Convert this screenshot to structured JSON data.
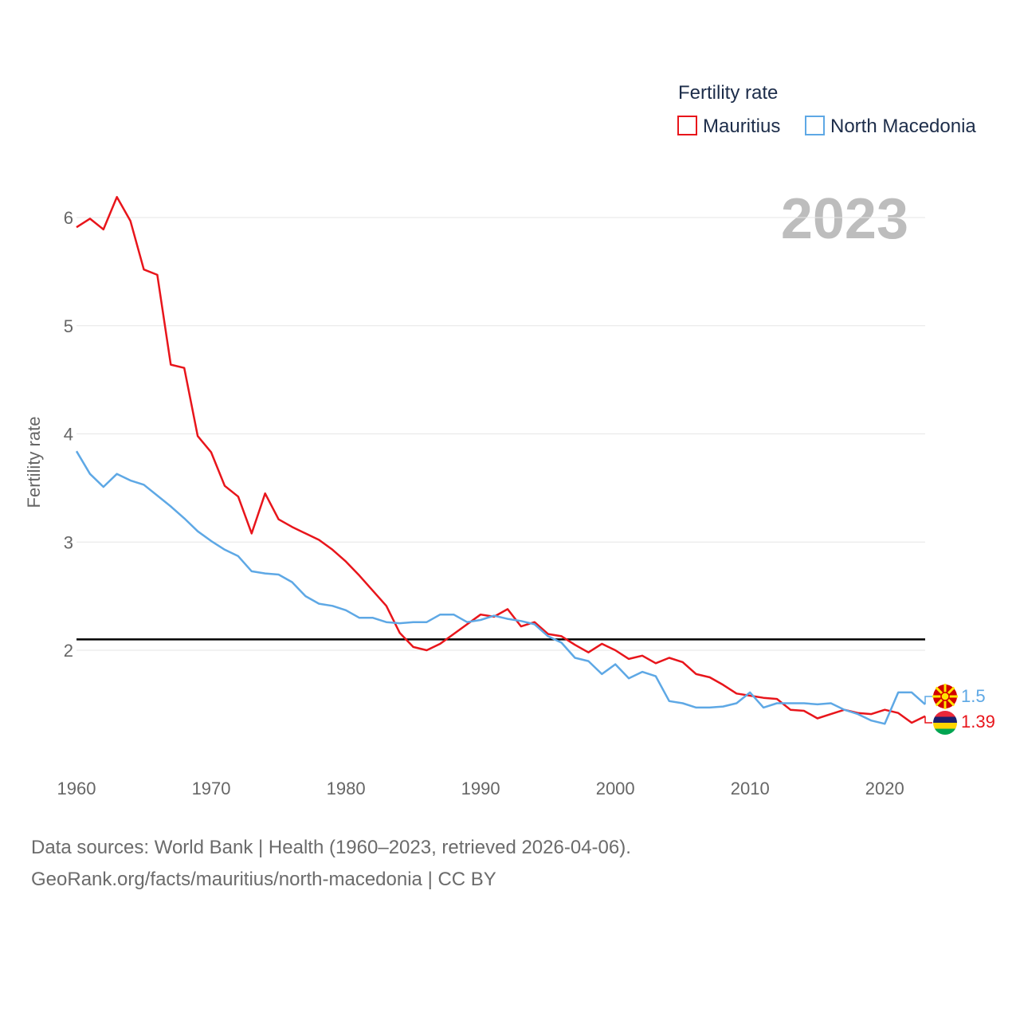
{
  "chart_data": {
    "type": "line",
    "title": "Fertility rate",
    "year_label": "2023",
    "ylabel": "Fertility rate",
    "xlabel": "",
    "xlim": [
      1960,
      2023
    ],
    "ylim": [
      1,
      6.2
    ],
    "x_ticks": [
      1960,
      1970,
      1980,
      1990,
      2000,
      2010,
      2020
    ],
    "y_ticks": [
      2,
      3,
      4,
      5,
      6
    ],
    "reference_line": 2.1,
    "legend_position": "top-right",
    "x": [
      1960,
      1961,
      1962,
      1963,
      1964,
      1965,
      1966,
      1967,
      1968,
      1969,
      1970,
      1971,
      1972,
      1973,
      1974,
      1975,
      1976,
      1977,
      1978,
      1979,
      1980,
      1981,
      1982,
      1983,
      1984,
      1985,
      1986,
      1987,
      1988,
      1989,
      1990,
      1991,
      1992,
      1993,
      1994,
      1995,
      1996,
      1997,
      1998,
      1999,
      2000,
      2001,
      2002,
      2003,
      2004,
      2005,
      2006,
      2007,
      2008,
      2009,
      2010,
      2011,
      2012,
      2013,
      2014,
      2015,
      2016,
      2017,
      2018,
      2019,
      2020,
      2021,
      2022,
      2023
    ],
    "series": [
      {
        "name": "Mauritius",
        "color": "#e8151b",
        "end_label": "1.39",
        "values": [
          5.91,
          5.99,
          5.89,
          6.19,
          5.97,
          5.52,
          5.47,
          4.64,
          4.61,
          3.98,
          3.83,
          3.52,
          3.42,
          3.08,
          3.45,
          3.21,
          3.14,
          3.08,
          3.02,
          2.93,
          2.82,
          2.69,
          2.55,
          2.41,
          2.16,
          2.03,
          2.0,
          2.06,
          2.15,
          2.24,
          2.33,
          2.31,
          2.38,
          2.22,
          2.26,
          2.15,
          2.13,
          2.05,
          1.98,
          2.06,
          2.0,
          1.92,
          1.95,
          1.88,
          1.93,
          1.89,
          1.78,
          1.75,
          1.68,
          1.6,
          1.58,
          1.56,
          1.55,
          1.45,
          1.44,
          1.37,
          1.41,
          1.45,
          1.42,
          1.41,
          1.45,
          1.42,
          1.33,
          1.39
        ]
      },
      {
        "name": "North Macedonia",
        "color": "#5ea8e5",
        "end_label": "1.5",
        "values": [
          3.84,
          3.63,
          3.51,
          3.63,
          3.57,
          3.53,
          3.43,
          3.33,
          3.22,
          3.1,
          3.01,
          2.93,
          2.87,
          2.73,
          2.71,
          2.7,
          2.63,
          2.5,
          2.43,
          2.41,
          2.37,
          2.3,
          2.3,
          2.26,
          2.25,
          2.26,
          2.26,
          2.33,
          2.33,
          2.26,
          2.28,
          2.32,
          2.29,
          2.27,
          2.24,
          2.13,
          2.07,
          1.93,
          1.9,
          1.78,
          1.87,
          1.74,
          1.8,
          1.76,
          1.53,
          1.51,
          1.47,
          1.47,
          1.48,
          1.51,
          1.61,
          1.47,
          1.51,
          1.51,
          1.51,
          1.5,
          1.51,
          1.45,
          1.41,
          1.35,
          1.32,
          1.61,
          1.61,
          1.5
        ]
      }
    ]
  },
  "source": {
    "line1": "Data sources: World Bank | Health (1960–2023, retrieved 2026-04-06).",
    "line2": "GeoRank.org/facts/mauritius/north-macedonia | CC BY"
  }
}
